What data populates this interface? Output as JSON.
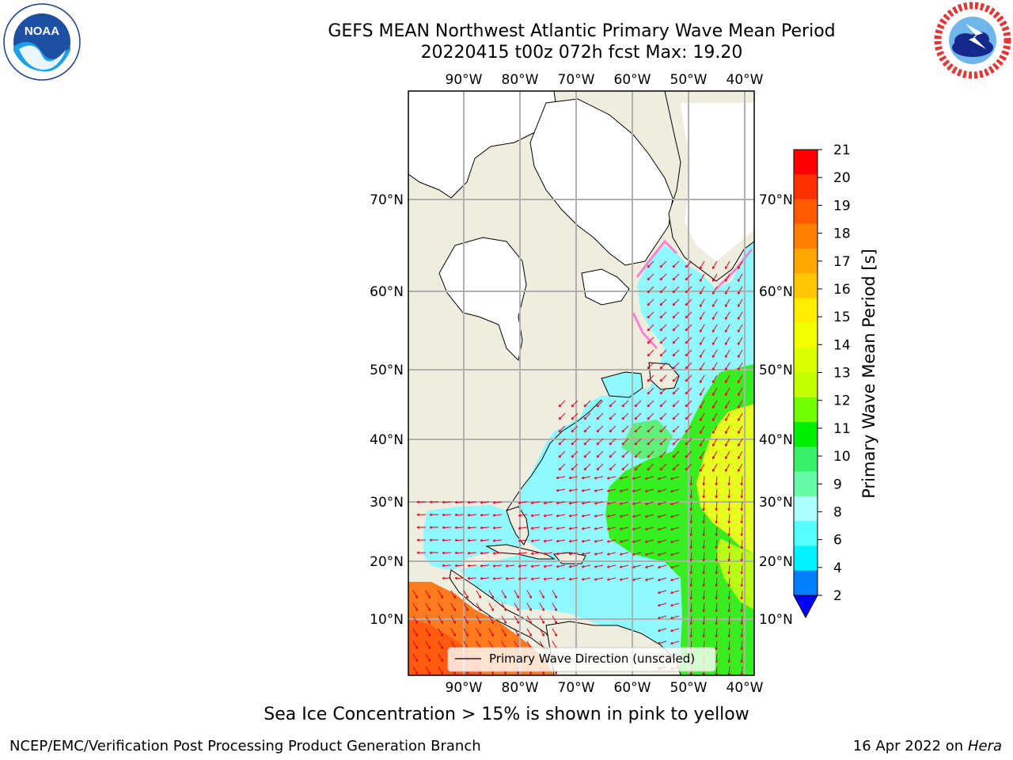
{
  "header": {
    "title_line1": "GEFS MEAN Northwest Atlantic Primary Wave Mean Period",
    "title_line2": "20220415 t00z 072h fcst   Max: 19.20"
  },
  "logos": {
    "left": "NOAA",
    "left_ring_text": "NATIONAL OCEANIC AND ATMOSPHERIC ADMINISTRATION · U.S. DEPARTMENT OF COMMERCE",
    "right_ring_text": "NATIONAL WEATHER SERVICE"
  },
  "map": {
    "lon_labels": [
      "90°W",
      "80°W",
      "70°W",
      "60°W",
      "50°W",
      "40°W"
    ],
    "lat_labels": [
      "70°N",
      "60°N",
      "50°N",
      "40°N",
      "30°N",
      "20°N",
      "10°N"
    ],
    "legend_label": "Primary Wave Direction (unscaled)",
    "colors": {
      "land": "#efedde",
      "ice_land": "#ffffff",
      "grid": "#b0b0b0",
      "arrow": "#e8001e"
    }
  },
  "colorbar": {
    "label": "Primary Wave Mean Period [s]",
    "ticks": [
      "21",
      "20",
      "19",
      "18",
      "17",
      "16",
      "15",
      "14",
      "13",
      "12",
      "11",
      "10",
      "9",
      "8",
      "6",
      "4",
      "2"
    ],
    "bands": [
      "#ff0000",
      "#ff3000",
      "#ff5a00",
      "#ff8000",
      "#ffa500",
      "#ffc800",
      "#ffee00",
      "#f3ff00",
      "#dcff00",
      "#c2ff00",
      "#70ff00",
      "#00ee00",
      "#38f06a",
      "#66f9a6",
      "#aaffff",
      "#55ffff",
      "#00f2ff",
      "#0080ff"
    ],
    "extend_color": "#0000ff"
  },
  "footer": {
    "note": "Sea Ice Concentration > 15% is shown in pink to yellow",
    "left": "NCEP/EMC/Verification Post Processing Product Generation Branch",
    "date": "16 Apr 2022 on",
    "host": "Hera"
  }
}
